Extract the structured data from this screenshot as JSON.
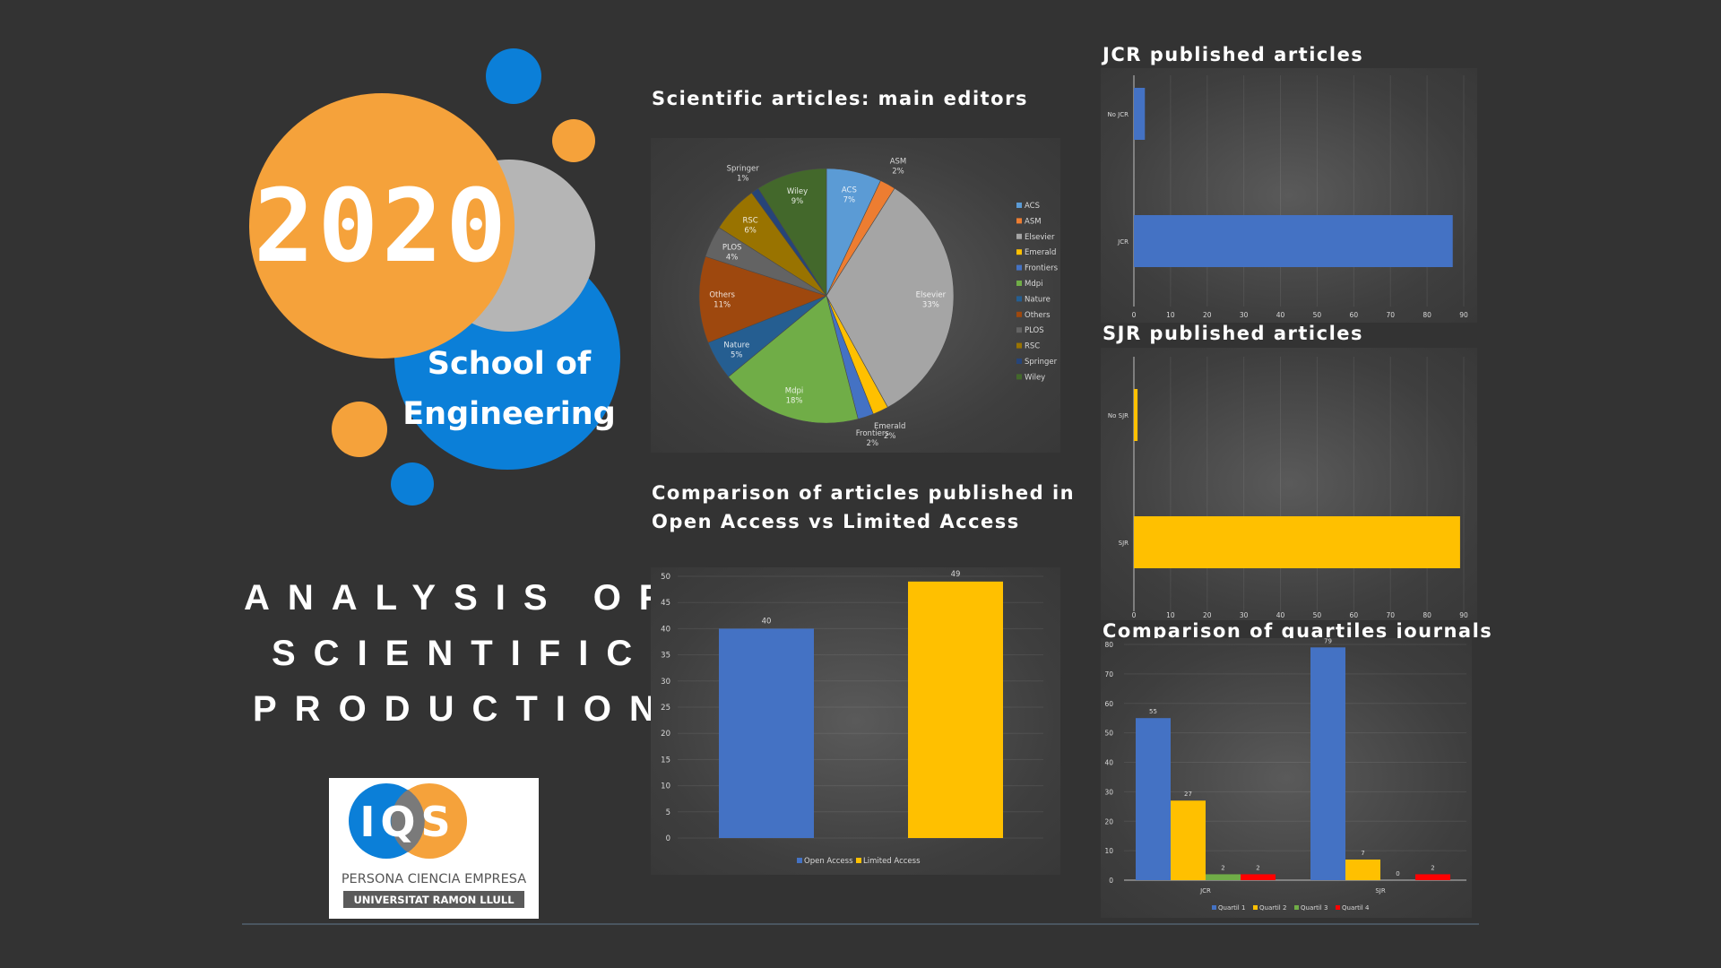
{
  "year": "2020",
  "school_line1": "School of",
  "school_line2": "Engineering",
  "main_title": [
    "ANALYSIS OF",
    "SCIENTIFIC",
    "PRODUCTION"
  ],
  "logo": {
    "tagline": "PERSONA CIENCIA EMPRESA",
    "university": "UNIVERSITAT RAMON LLULL",
    "mark": "IQS"
  },
  "colors": {
    "blue": "#4472c4",
    "yellow": "#ffc000",
    "orange": "#ed7d31",
    "green": "#70ad47",
    "red": "#ff0000",
    "circle_orange": "#f5a23b",
    "circle_blue": "#0b7fd8",
    "circle_gray": "#b5b5b5"
  },
  "chart_data": [
    {
      "type": "pie",
      "title": "Scientific articles: main editors",
      "slices": [
        {
          "label": "ACS",
          "value": 7,
          "pct": "7%",
          "color": "#5b9bd5"
        },
        {
          "label": "ASM",
          "value": 2,
          "pct": "2%",
          "color": "#ed7d31"
        },
        {
          "label": "Elsevier",
          "value": 33,
          "pct": "33%",
          "color": "#a5a5a5"
        },
        {
          "label": "Emerald",
          "value": 2,
          "pct": "2%",
          "color": "#ffc000"
        },
        {
          "label": "Frontiers",
          "value": 2,
          "pct": "2%",
          "color": "#4472c4"
        },
        {
          "label": "Mdpi",
          "value": 18,
          "pct": "18%",
          "color": "#70ad47"
        },
        {
          "label": "Nature",
          "value": 5,
          "pct": "5%",
          "color": "#255e91"
        },
        {
          "label": "Others",
          "value": 11,
          "pct": "11%",
          "color": "#9e480e"
        },
        {
          "label": "PLOS",
          "value": 4,
          "pct": "4%",
          "color": "#636363"
        },
        {
          "label": "RSC",
          "value": 6,
          "pct": "6%",
          "color": "#997300"
        },
        {
          "label": "Springer",
          "value": 1,
          "pct": "1%",
          "color": "#264478"
        },
        {
          "label": "Wiley",
          "value": 9,
          "pct": "9%",
          "color": "#43682b"
        }
      ],
      "legend": [
        "ACS",
        "ASM",
        "Elsevier",
        "Emerald",
        "Frontiers",
        "Mdpi",
        "Nature",
        "Others",
        "PLOS",
        "RSC",
        "Springer",
        "Wiley"
      ],
      "legend_position": "right"
    },
    {
      "type": "bar",
      "title": "Comparison of articles published in Open Access vs Limited Access",
      "title_lines": [
        "Comparison of articles published in",
        "Open Access vs Limited Access"
      ],
      "series": [
        {
          "name": "Open Access",
          "values": [
            40
          ],
          "color": "#4472c4"
        },
        {
          "name": "Limited Access",
          "values": [
            49
          ],
          "color": "#ffc000"
        }
      ],
      "ylim": [
        0,
        50
      ],
      "yticks": [
        0,
        5,
        10,
        15,
        20,
        25,
        30,
        35,
        40,
        45,
        50
      ],
      "legend_position": "bottom"
    },
    {
      "type": "bar",
      "orientation": "horizontal",
      "title": "JCR published articles",
      "categories": [
        "No JCR",
        "JCR"
      ],
      "values": [
        3,
        87
      ],
      "color": "#4472c4",
      "xlim": [
        0,
        90
      ],
      "xticks": [
        0,
        10,
        20,
        30,
        40,
        50,
        60,
        70,
        80,
        90
      ]
    },
    {
      "type": "bar",
      "orientation": "horizontal",
      "title": "SJR published articles",
      "categories": [
        "No SJR",
        "SJR"
      ],
      "values": [
        1,
        89
      ],
      "color": "#ffc000",
      "xlim": [
        0,
        90
      ],
      "xticks": [
        0,
        10,
        20,
        30,
        40,
        50,
        60,
        70,
        80,
        90
      ]
    },
    {
      "type": "bar",
      "title": "Comparison of quartiles journals",
      "categories": [
        "JCR",
        "SJR"
      ],
      "series": [
        {
          "name": "Quartil 1",
          "values": [
            55,
            79
          ],
          "color": "#4472c4"
        },
        {
          "name": "Quartil 2",
          "values": [
            27,
            7
          ],
          "color": "#ffc000"
        },
        {
          "name": "Quartil 3",
          "values": [
            2,
            0
          ],
          "color": "#70ad47"
        },
        {
          "name": "Quartil 4",
          "values": [
            2,
            2
          ],
          "color": "#ff0000"
        }
      ],
      "ylim": [
        0,
        80
      ],
      "yticks": [
        0,
        10,
        20,
        30,
        40,
        50,
        60,
        70,
        80
      ],
      "legend_position": "bottom"
    }
  ]
}
